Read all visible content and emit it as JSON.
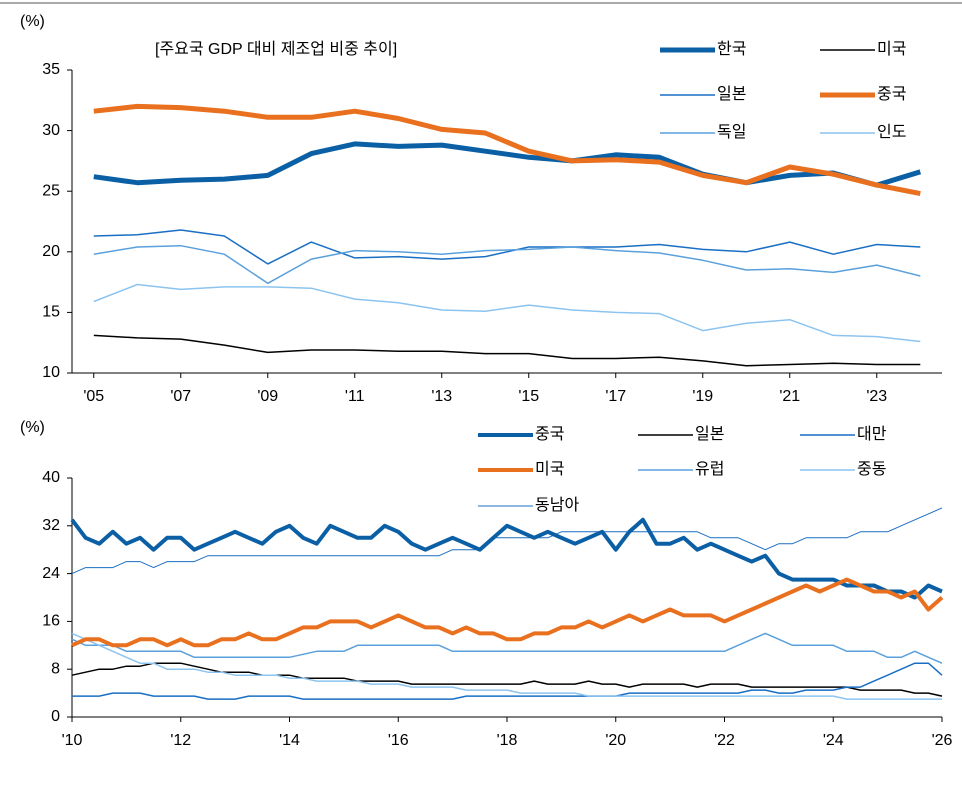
{
  "chart_data": [
    {
      "type": "line",
      "ylabel": "(%)",
      "annotation": "[주요국 GDP 대비 제조업 비중 추이]",
      "x": [
        2005,
        2006,
        2007,
        2008,
        2009,
        2010,
        2011,
        2012,
        2013,
        2014,
        2015,
        2016,
        2017,
        2018,
        2019,
        2020,
        2021,
        2022,
        2023,
        2024
      ],
      "xlim": [
        2004.5,
        2024.5
      ],
      "xticks": [
        {
          "value": 2005,
          "label": "'05"
        },
        {
          "value": 2007,
          "label": "'07"
        },
        {
          "value": 2009,
          "label": "'09"
        },
        {
          "value": 2011,
          "label": "'11"
        },
        {
          "value": 2013,
          "label": "'13"
        },
        {
          "value": 2015,
          "label": "'15"
        },
        {
          "value": 2017,
          "label": "'17"
        },
        {
          "value": 2019,
          "label": "'19"
        },
        {
          "value": 2021,
          "label": "'21"
        },
        {
          "value": 2023,
          "label": "'23"
        }
      ],
      "ylim": [
        10,
        35
      ],
      "yticks": [
        10,
        15,
        20,
        25,
        30,
        35
      ],
      "series": [
        {
          "name": "한국",
          "color": "#0b5fa5",
          "linewidth": 5,
          "values": [
            26.2,
            25.7,
            25.9,
            26.0,
            26.3,
            28.1,
            28.9,
            28.7,
            28.8,
            28.3,
            27.8,
            27.5,
            28.0,
            27.8,
            26.4,
            25.7,
            26.3,
            26.5,
            25.5,
            26.6
          ]
        },
        {
          "name": "미국",
          "color": "#000000",
          "linewidth": 1.5,
          "values": [
            13.1,
            12.9,
            12.8,
            12.3,
            11.7,
            11.9,
            11.9,
            11.8,
            11.8,
            11.6,
            11.6,
            11.2,
            11.2,
            11.3,
            11.0,
            10.6,
            10.7,
            10.8,
            10.7,
            10.7
          ]
        },
        {
          "name": "일본",
          "color": "#1a6fc4",
          "linewidth": 1.5,
          "values": [
            21.3,
            21.4,
            21.8,
            21.3,
            19.0,
            20.8,
            19.5,
            19.6,
            19.4,
            19.6,
            20.4,
            20.4,
            20.4,
            20.6,
            20.2,
            20.0,
            20.8,
            19.8,
            20.6,
            20.4
          ]
        },
        {
          "name": "중국",
          "color": "#e8701e",
          "linewidth": 5,
          "values": [
            31.6,
            32.0,
            31.9,
            31.6,
            31.1,
            31.1,
            31.6,
            31.0,
            30.1,
            29.8,
            28.3,
            27.5,
            27.6,
            27.4,
            26.3,
            25.7,
            27.0,
            26.4,
            25.5,
            24.8
          ]
        },
        {
          "name": "독일",
          "color": "#5aa0dc",
          "linewidth": 1.5,
          "values": [
            19.8,
            20.4,
            20.5,
            19.8,
            17.4,
            19.4,
            20.1,
            20.0,
            19.8,
            20.1,
            20.2,
            20.4,
            20.1,
            19.9,
            19.3,
            18.5,
            18.6,
            18.3,
            18.9,
            18.0
          ]
        },
        {
          "name": "인도",
          "color": "#8cc4ef",
          "linewidth": 1.5,
          "values": [
            15.9,
            17.3,
            16.9,
            17.1,
            17.1,
            17.0,
            16.1,
            15.8,
            15.2,
            15.1,
            15.6,
            15.2,
            15.0,
            14.9,
            13.5,
            14.1,
            14.4,
            13.1,
            13.0,
            12.6
          ]
        }
      ]
    },
    {
      "type": "line",
      "ylabel": "(%)",
      "x": [
        2010,
        2010.25,
        2010.5,
        2010.75,
        2011,
        2011.25,
        2011.5,
        2011.75,
        2012,
        2012.25,
        2012.5,
        2012.75,
        2013,
        2013.25,
        2013.5,
        2013.75,
        2014,
        2014.25,
        2014.5,
        2014.75,
        2015,
        2015.25,
        2015.5,
        2015.75,
        2016,
        2016.25,
        2016.5,
        2016.75,
        2017,
        2017.25,
        2017.5,
        2017.75,
        2018,
        2018.25,
        2018.5,
        2018.75,
        2019,
        2019.25,
        2019.5,
        2019.75,
        2020,
        2020.25,
        2020.5,
        2020.75,
        2021,
        2021.25,
        2021.5,
        2021.75,
        2022,
        2022.25,
        2022.5,
        2022.75,
        2023,
        2023.25,
        2023.5,
        2023.75,
        2024,
        2024.25,
        2024.5,
        2024.75,
        2025,
        2025.25,
        2025.5,
        2025.75,
        2026
      ],
      "xlim": [
        2010,
        2026
      ],
      "xticks": [
        {
          "value": 2010,
          "label": "'10"
        },
        {
          "value": 2012,
          "label": "'12"
        },
        {
          "value": 2014,
          "label": "'14"
        },
        {
          "value": 2016,
          "label": "'16"
        },
        {
          "value": 2018,
          "label": "'18"
        },
        {
          "value": 2020,
          "label": "'20"
        },
        {
          "value": 2022,
          "label": "'22"
        },
        {
          "value": 2024,
          "label": "'24"
        },
        {
          "value": 2026,
          "label": "'26"
        }
      ],
      "ylim": [
        0,
        40
      ],
      "yticks": [
        0,
        8,
        16,
        24,
        32,
        40
      ],
      "series": [
        {
          "name": "중국",
          "color": "#0b5fa5",
          "linewidth": 4,
          "values": [
            33,
            30,
            29,
            31,
            29,
            30,
            28,
            30,
            30,
            28,
            29,
            30,
            31,
            30,
            29,
            31,
            32,
            30,
            29,
            32,
            31,
            30,
            30,
            32,
            31,
            29,
            28,
            29,
            30,
            29,
            28,
            30,
            32,
            31,
            30,
            31,
            30,
            29,
            30,
            31,
            28,
            31,
            33,
            29,
            29,
            30,
            28,
            29,
            28,
            27,
            26,
            27,
            24,
            23,
            23,
            23,
            23,
            22,
            22,
            22,
            21,
            21,
            20,
            22,
            21
          ]
        },
        {
          "name": "일본",
          "color": "#000000",
          "linewidth": 1.5,
          "values": [
            7,
            7.5,
            8,
            8,
            8.5,
            8.5,
            9,
            9,
            9,
            8.5,
            8,
            7.5,
            7.5,
            7.5,
            7,
            7,
            7,
            6.5,
            6.5,
            6.5,
            6.5,
            6,
            6,
            6,
            6,
            5.5,
            5.5,
            5.5,
            5.5,
            5.5,
            5.5,
            5.5,
            5.5,
            5.5,
            6,
            5.5,
            5.5,
            5.5,
            6,
            5.5,
            5.5,
            5,
            5.5,
            5.5,
            5.5,
            5.5,
            5,
            5.5,
            5.5,
            5.5,
            5,
            5,
            5,
            5,
            5,
            5,
            5,
            5,
            4.5,
            4.5,
            4.5,
            4.5,
            4,
            4,
            3.5
          ]
        },
        {
          "name": "대만",
          "color": "#1a6fc4",
          "linewidth": 1.5,
          "values": [
            3.5,
            3.5,
            3.5,
            4,
            4,
            4,
            3.5,
            3.5,
            3.5,
            3.5,
            3,
            3,
            3,
            3.5,
            3.5,
            3.5,
            3.5,
            3,
            3,
            3,
            3,
            3,
            3,
            3,
            3,
            3,
            3,
            3,
            3,
            3.5,
            3.5,
            3.5,
            3.5,
            3.5,
            3.5,
            3.5,
            3.5,
            3.5,
            3.5,
            3.5,
            3.5,
            4,
            4,
            4,
            4,
            4,
            4,
            4,
            4,
            4,
            4.5,
            4.5,
            4,
            4,
            4.5,
            4.5,
            4.5,
            5,
            5,
            6,
            7,
            8,
            9,
            9,
            7
          ]
        },
        {
          "name": "미국",
          "color": "#e8701e",
          "linewidth": 4,
          "values": [
            12,
            13,
            13,
            12,
            12,
            13,
            13,
            12,
            13,
            12,
            12,
            13,
            13,
            14,
            13,
            13,
            14,
            15,
            15,
            16,
            16,
            16,
            15,
            16,
            17,
            16,
            15,
            15,
            14,
            15,
            14,
            14,
            13,
            13,
            14,
            14,
            15,
            15,
            16,
            15,
            16,
            17,
            16,
            17,
            18,
            17,
            17,
            17,
            16,
            17,
            18,
            19,
            20,
            21,
            22,
            21,
            22,
            23,
            22,
            21,
            21,
            20,
            21,
            18,
            20
          ]
        },
        {
          "name": "유럽",
          "color": "#5aa0dc",
          "linewidth": 1.5,
          "values": [
            13,
            12,
            12,
            12,
            11,
            11,
            11,
            11,
            11,
            10,
            10,
            10,
            10,
            10,
            10,
            10,
            10,
            10.5,
            11,
            11,
            11,
            12,
            12,
            12,
            12,
            12,
            12,
            12,
            11,
            11,
            11,
            11,
            11,
            11,
            11,
            11,
            11,
            11,
            11,
            11,
            11,
            11,
            11,
            11,
            11,
            11,
            11,
            11,
            11,
            12,
            13,
            14,
            13,
            12,
            12,
            12,
            12,
            11,
            11,
            11,
            10,
            10,
            11,
            10,
            9
          ]
        },
        {
          "name": "중동",
          "color": "#8cc4ef",
          "linewidth": 1.5,
          "values": [
            14,
            13,
            12,
            11,
            10,
            9,
            9,
            8,
            8,
            8,
            7.5,
            7.5,
            7,
            7,
            7,
            7,
            6.5,
            6.5,
            6,
            6,
            6,
            6,
            5.5,
            5.5,
            5.5,
            5,
            5,
            5,
            5,
            4.5,
            4.5,
            4.5,
            4.5,
            4,
            4,
            4,
            4,
            4,
            3.5,
            3.5,
            3.5,
            3.5,
            3.5,
            3.5,
            3.5,
            3.5,
            3.5,
            3.5,
            3.5,
            3.5,
            3.5,
            3.5,
            3.5,
            3.5,
            3.5,
            3.5,
            3.5,
            3,
            3,
            3,
            3,
            3,
            3,
            3,
            3
          ]
        },
        {
          "name": "동남아",
          "color": "#1a6fc4",
          "linewidth": 1,
          "values": [
            24,
            25,
            25,
            25,
            26,
            26,
            25,
            26,
            26,
            26,
            27,
            27,
            27,
            27,
            27,
            27,
            27,
            27,
            27,
            27,
            27,
            27,
            27,
            27,
            27,
            27,
            27,
            27,
            28,
            28,
            28,
            30,
            30,
            30,
            30,
            30,
            31,
            31,
            31,
            31,
            31,
            31,
            31,
            31,
            31,
            31,
            31,
            30,
            30,
            30,
            29,
            28,
            29,
            29,
            30,
            30,
            30,
            30,
            31,
            31,
            31,
            32,
            33,
            34,
            35
          ]
        }
      ]
    }
  ]
}
